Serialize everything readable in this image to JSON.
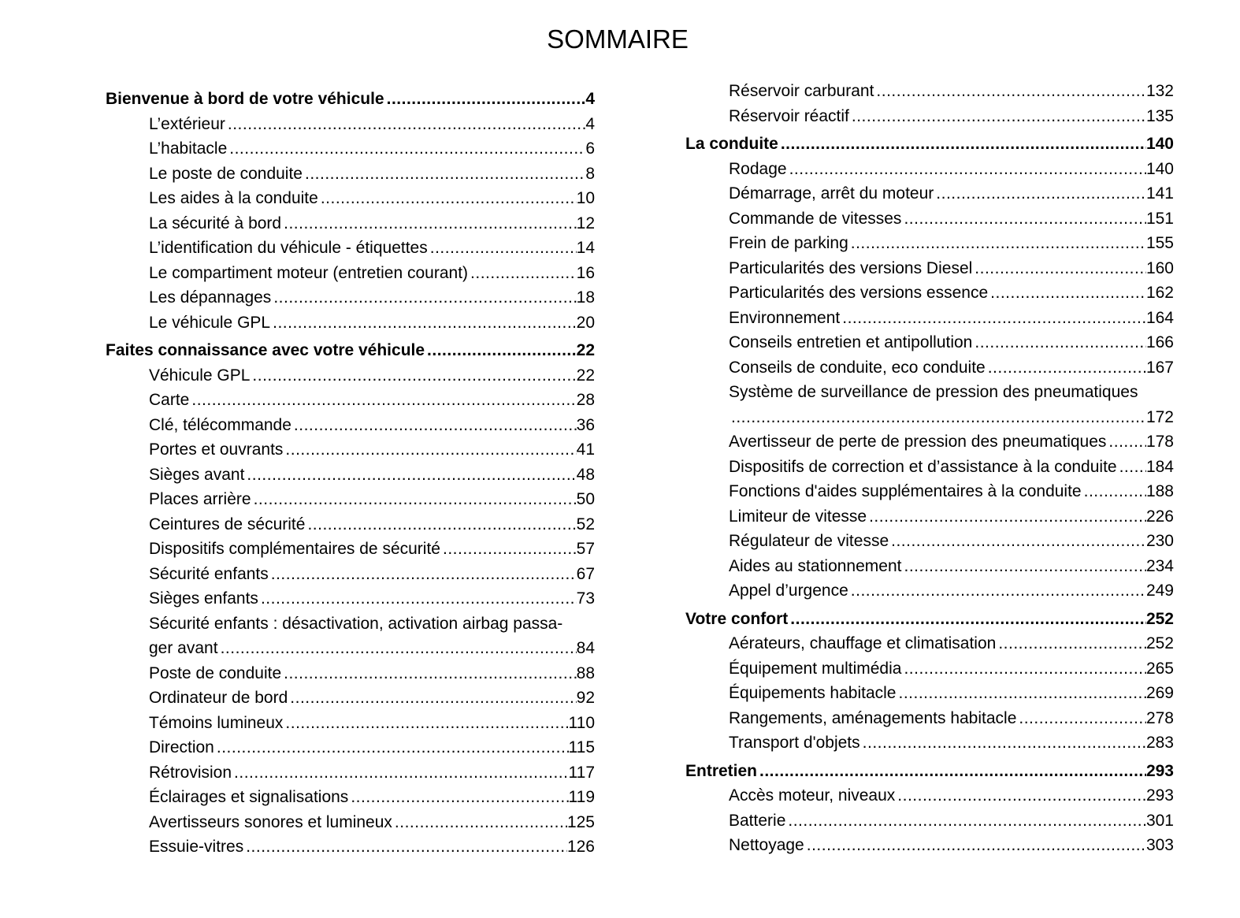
{
  "title": "SOMMAIRE",
  "columns": [
    {
      "entries": [
        {
          "type": "section",
          "title": "Bienvenue à bord de votre véhicule",
          "page": "4"
        },
        {
          "type": "item",
          "title": "L’extérieur",
          "page": "4"
        },
        {
          "type": "item",
          "title": "L’habitacle",
          "page": "6"
        },
        {
          "type": "item",
          "title": "Le poste de conduite",
          "page": "8"
        },
        {
          "type": "item",
          "title": "Les aides à la conduite",
          "page": "10"
        },
        {
          "type": "item",
          "title": "La sécurité à bord",
          "page": "12"
        },
        {
          "type": "item",
          "title": "L’identification du véhicule - étiquettes",
          "page": "14"
        },
        {
          "type": "item",
          "title": "Le compartiment moteur (entretien courant)",
          "page": "16"
        },
        {
          "type": "item",
          "title": "Les dépannages",
          "page": "18"
        },
        {
          "type": "item",
          "title": "Le véhicule GPL",
          "page": "20"
        },
        {
          "type": "section",
          "title": "Faites connaissance avec votre véhicule",
          "page": "22"
        },
        {
          "type": "item",
          "title": "Véhicule GPL",
          "page": "22"
        },
        {
          "type": "item",
          "title": "Carte",
          "page": "28"
        },
        {
          "type": "item",
          "title": "Clé, télécommande",
          "page": "36"
        },
        {
          "type": "item",
          "title": "Portes et ouvrants",
          "page": "41"
        },
        {
          "type": "item",
          "title": "Sièges avant",
          "page": "48"
        },
        {
          "type": "item",
          "title": "Places arrière",
          "page": "50"
        },
        {
          "type": "item",
          "title": "Ceintures de sécurité",
          "page": "52"
        },
        {
          "type": "item",
          "title": "Dispositifs complémentaires de sécurité",
          "page": "57"
        },
        {
          "type": "item",
          "title": "Sécurité enfants",
          "page": "67"
        },
        {
          "type": "item",
          "title": "Sièges enfants",
          "page": "73"
        },
        {
          "type": "item",
          "title": "Sécurité enfants : désactivation, activation airbag passa-",
          "title_cont": "ger avant",
          "page": "84"
        },
        {
          "type": "item",
          "title": "Poste de conduite",
          "page": "88"
        },
        {
          "type": "item",
          "title": "Ordinateur de bord",
          "page": "92"
        },
        {
          "type": "item",
          "title": "Témoins lumineux",
          "page": "110"
        },
        {
          "type": "item",
          "title": "Direction",
          "page": "115"
        },
        {
          "type": "item",
          "title": "Rétrovision",
          "page": "117"
        },
        {
          "type": "item",
          "title": "Éclairages et signalisations",
          "page": "119"
        },
        {
          "type": "item",
          "title": "Avertisseurs sonores et lumineux",
          "page": "125"
        },
        {
          "type": "item",
          "title": "Essuie-vitres",
          "page": "126"
        }
      ]
    },
    {
      "entries": [
        {
          "type": "item",
          "title": "Réservoir carburant",
          "page": "132"
        },
        {
          "type": "item",
          "title": "Réservoir réactif",
          "page": "135"
        },
        {
          "type": "section",
          "title": "La conduite",
          "page": "140"
        },
        {
          "type": "item",
          "title": "Rodage",
          "page": "140"
        },
        {
          "type": "item",
          "title": "Démarrage, arrêt du moteur",
          "page": "141"
        },
        {
          "type": "item",
          "title": "Commande de vitesses",
          "page": "151"
        },
        {
          "type": "item",
          "title": "Frein de parking",
          "page": "155"
        },
        {
          "type": "item",
          "title": "Particularités des versions Diesel",
          "page": "160"
        },
        {
          "type": "item",
          "title": "Particularités des versions essence",
          "page": "162"
        },
        {
          "type": "item",
          "title": "Environnement",
          "page": "164"
        },
        {
          "type": "item",
          "title": "Conseils entretien et antipollution",
          "page": "166"
        },
        {
          "type": "item",
          "title": "Conseils de conduite, eco conduite",
          "page": "167"
        },
        {
          "type": "item",
          "title": "Système de surveillance de pression des pneumatiques",
          "title_cont": "",
          "page": "172"
        },
        {
          "type": "item",
          "title": "Avertisseur de perte de pression des pneumatiques",
          "page": "178"
        },
        {
          "type": "item",
          "title": "Dispositifs de correction et d’assistance à la conduite",
          "page": "184"
        },
        {
          "type": "item",
          "title": "Fonctions d'aides supplémentaires à la conduite",
          "page": "188"
        },
        {
          "type": "item",
          "title": "Limiteur de vitesse",
          "page": "226"
        },
        {
          "type": "item",
          "title": "Régulateur de vitesse",
          "page": "230"
        },
        {
          "type": "item",
          "title": "Aides au stationnement",
          "page": "234"
        },
        {
          "type": "item",
          "title": "Appel d’urgence",
          "page": "249"
        },
        {
          "type": "section",
          "title": "Votre confort",
          "page": "252"
        },
        {
          "type": "item",
          "title": "Aérateurs, chauffage et climatisation",
          "page": "252"
        },
        {
          "type": "item",
          "title": "Équipement multimédia",
          "page": "265"
        },
        {
          "type": "item",
          "title": "Équipements habitacle",
          "page": "269"
        },
        {
          "type": "item",
          "title": "Rangements, aménagements habitacle",
          "page": "278"
        },
        {
          "type": "item",
          "title": "Transport d'objets",
          "page": "283"
        },
        {
          "type": "section",
          "title": "Entretien",
          "page": "293"
        },
        {
          "type": "item",
          "title": "Accès moteur, niveaux",
          "page": "293"
        },
        {
          "type": "item",
          "title": "Batterie",
          "page": "301"
        },
        {
          "type": "item",
          "title": "Nettoyage",
          "page": "303"
        }
      ]
    }
  ]
}
